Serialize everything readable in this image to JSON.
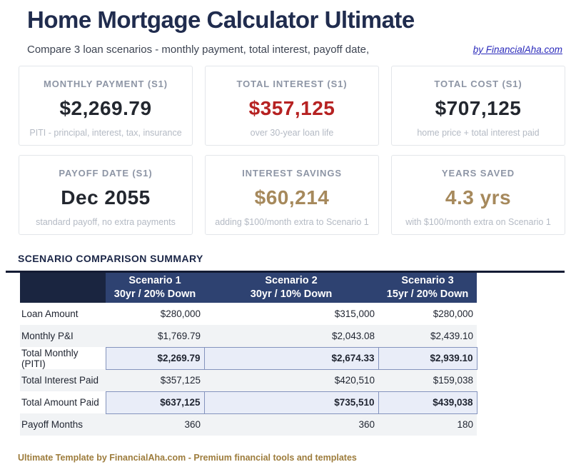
{
  "page": {
    "title": "Home Mortgage Calculator Ultimate",
    "subtitle": "Compare 3 loan scenarios - monthly payment, total interest, payoff date,",
    "link": "by FinancialAha.com",
    "footer": "Ultimate Template by FinancialAha.com - Premium financial tools and templates"
  },
  "cards": [
    {
      "label": "MONTHLY PAYMENT (S1)",
      "value": "$2,269.79",
      "sub": "PITI - principal, interest, tax, insurance"
    },
    {
      "label": "TOTAL INTEREST (S1)",
      "value": "$357,125",
      "sub": "over 30-year loan life"
    },
    {
      "label": "TOTAL COST (S1)",
      "value": "$707,125",
      "sub": "home price + total interest paid"
    },
    {
      "label": "PAYOFF DATE (S1)",
      "value": "Dec 2055",
      "sub": "standard payoff, no extra payments"
    },
    {
      "label": "INTEREST SAVINGS",
      "value": "$60,214",
      "sub": "adding $100/month extra to Scenario 1"
    },
    {
      "label": "YEARS SAVED",
      "value": "4.3 yrs",
      "sub": "with $100/month extra on Scenario 1"
    }
  ],
  "comparison": {
    "section_title": "SCENARIO COMPARISON SUMMARY",
    "columns": [
      {
        "name": "Scenario 1",
        "sub": "30yr / 20% Down"
      },
      {
        "name": "Scenario 2",
        "sub": "30yr / 10% Down"
      },
      {
        "name": "Scenario 3",
        "sub": "15yr / 20% Down"
      }
    ],
    "rows": [
      {
        "label": "Loan Amount",
        "values": [
          "$280,000",
          "$315,000",
          "$280,000"
        ]
      },
      {
        "label": "Monthly P&I",
        "values": [
          "$1,769.79",
          "$2,043.08",
          "$2,439.10"
        ]
      },
      {
        "label": "Total Monthly (PITI)",
        "values": [
          "$2,269.79",
          "$2,674.33",
          "$2,939.10"
        ]
      },
      {
        "label": "Total Interest Paid",
        "values": [
          "$357,125",
          "$420,510",
          "$159,038"
        ]
      },
      {
        "label": "Total Amount Paid",
        "values": [
          "$637,125",
          "$735,510",
          "$439,038"
        ]
      },
      {
        "label": "Payoff Months",
        "values": [
          "360",
          "360",
          "180"
        ]
      }
    ]
  },
  "colors": {
    "title_navy": "#202c4e",
    "table_header_dark": "#1a2540",
    "table_header_blue": "#2e4271",
    "value_red": "#b62222",
    "value_gold": "#a6895c",
    "footer_gold": "#9d7c3c",
    "link_blue": "#2b2bbb",
    "highlight_cell_bg": "#e9edf8",
    "highlight_cell_border": "#8493bd",
    "zebra_row": "#f1f3f5"
  }
}
